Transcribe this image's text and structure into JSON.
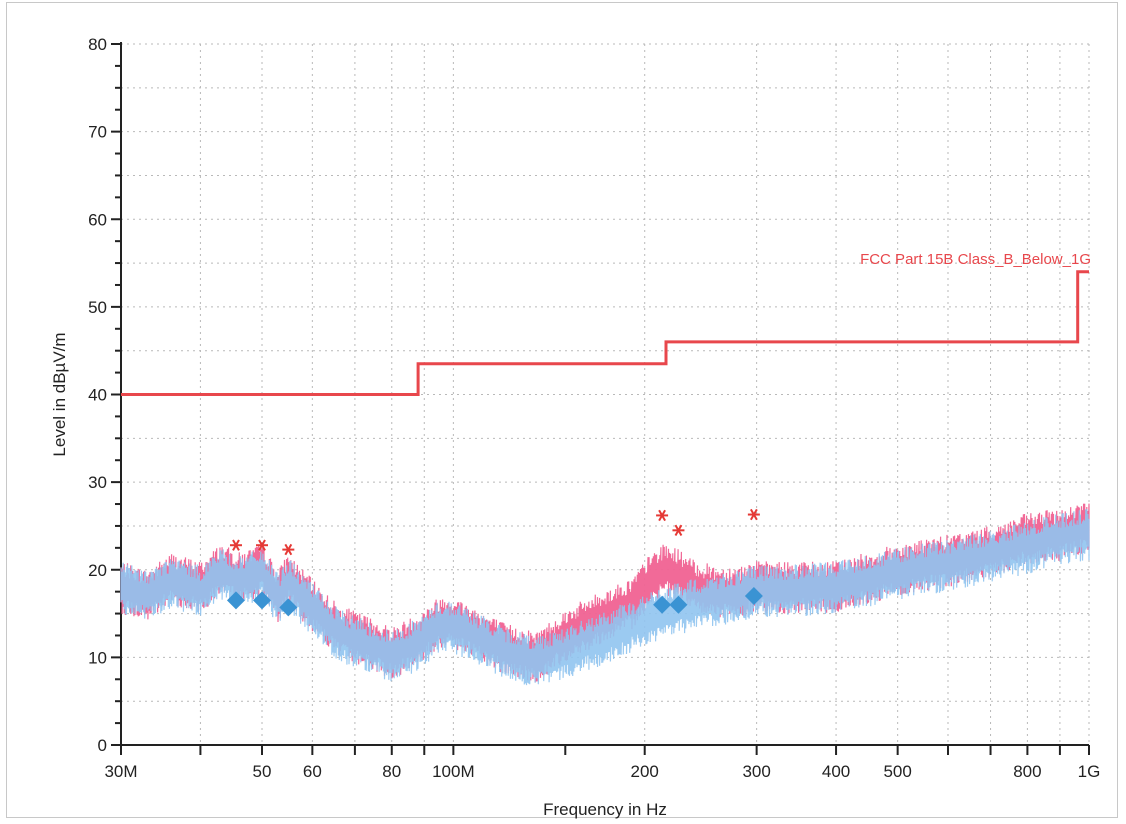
{
  "chart_data": {
    "type": "line",
    "xlabel": "Frequency in Hz",
    "ylabel": "Level in dBµV/m",
    "x_scale": "log",
    "xlim": [
      30000000,
      1000000000
    ],
    "ylim": [
      0,
      80
    ],
    "grid": true,
    "x_ticks": [
      {
        "value": 30000000,
        "label": "30M"
      },
      {
        "value": 50000000,
        "label": "50"
      },
      {
        "value": 60000000,
        "label": "60"
      },
      {
        "value": 80000000,
        "label": "80"
      },
      {
        "value": 100000000,
        "label": "100M"
      },
      {
        "value": 200000000,
        "label": "200"
      },
      {
        "value": 300000000,
        "label": "300"
      },
      {
        "value": 400000000,
        "label": "400"
      },
      {
        "value": 500000000,
        "label": "500"
      },
      {
        "value": 800000000,
        "label": "800"
      },
      {
        "value": 1000000000,
        "label": "1G"
      }
    ],
    "x_minor_ticks": [
      40000000,
      70000000,
      90000000,
      150000000,
      600000000,
      700000000,
      900000000
    ],
    "y_ticks": [
      0,
      10,
      20,
      30,
      40,
      50,
      60,
      70,
      80
    ],
    "limit_line": {
      "name": "FCC Part 15B Class_B_Below_1G",
      "color": "#e8474c",
      "points": [
        [
          30000000,
          40
        ],
        [
          88000000,
          40
        ],
        [
          88000000,
          43.5
        ],
        [
          216000000,
          43.5
        ],
        [
          216000000,
          46
        ],
        [
          960000000,
          46
        ],
        [
          960000000,
          54
        ],
        [
          1000000000,
          54
        ]
      ]
    },
    "traces": [
      {
        "color": "#f06292",
        "points": [
          [
            30000000,
            18
          ],
          [
            33000000,
            17
          ],
          [
            36000000,
            19
          ],
          [
            40000000,
            18
          ],
          [
            43000000,
            20
          ],
          [
            46000000,
            19
          ],
          [
            50000000,
            20
          ],
          [
            53000000,
            17
          ],
          [
            55000000,
            19
          ],
          [
            58000000,
            17
          ],
          [
            62000000,
            15
          ],
          [
            66000000,
            13
          ],
          [
            72000000,
            12
          ],
          [
            80000000,
            10.5
          ],
          [
            88000000,
            12
          ],
          [
            95000000,
            14
          ],
          [
            100000000,
            14
          ],
          [
            110000000,
            12.5
          ],
          [
            120000000,
            11
          ],
          [
            135000000,
            10
          ],
          [
            150000000,
            12.5
          ],
          [
            170000000,
            14.5
          ],
          [
            190000000,
            16
          ],
          [
            205000000,
            19
          ],
          [
            215000000,
            20
          ],
          [
            225000000,
            19.5
          ],
          [
            240000000,
            18
          ],
          [
            260000000,
            17.5
          ],
          [
            280000000,
            17.5
          ],
          [
            300000000,
            18
          ],
          [
            330000000,
            18
          ],
          [
            400000000,
            18
          ],
          [
            500000000,
            20
          ],
          [
            600000000,
            21
          ],
          [
            700000000,
            22
          ],
          [
            800000000,
            23.5
          ],
          [
            900000000,
            24
          ],
          [
            1000000000,
            25
          ]
        ]
      },
      {
        "color": "#90c4ef",
        "points": [
          [
            30000000,
            18
          ],
          [
            33000000,
            17
          ],
          [
            36000000,
            18.5
          ],
          [
            40000000,
            17.5
          ],
          [
            43000000,
            19.5
          ],
          [
            46000000,
            18.5
          ],
          [
            50000000,
            19.5
          ],
          [
            53000000,
            16.5
          ],
          [
            55000000,
            18.5
          ],
          [
            58000000,
            16.5
          ],
          [
            62000000,
            14.5
          ],
          [
            66000000,
            12.5
          ],
          [
            72000000,
            11.5
          ],
          [
            80000000,
            10
          ],
          [
            88000000,
            11.5
          ],
          [
            95000000,
            13.5
          ],
          [
            100000000,
            13.5
          ],
          [
            110000000,
            12
          ],
          [
            120000000,
            10.5
          ],
          [
            135000000,
            9.5
          ],
          [
            150000000,
            10.5
          ],
          [
            170000000,
            12
          ],
          [
            190000000,
            13.5
          ],
          [
            205000000,
            14.5
          ],
          [
            215000000,
            15
          ],
          [
            225000000,
            15.5
          ],
          [
            240000000,
            16
          ],
          [
            260000000,
            16.5
          ],
          [
            280000000,
            17
          ],
          [
            300000000,
            17.5
          ],
          [
            330000000,
            17.5
          ],
          [
            400000000,
            18
          ],
          [
            500000000,
            19.5
          ],
          [
            600000000,
            20.5
          ],
          [
            700000000,
            21.5
          ],
          [
            800000000,
            22.5
          ],
          [
            900000000,
            23.5
          ],
          [
            1000000000,
            24
          ]
        ]
      }
    ],
    "peak_markers": {
      "color": "#e53935",
      "points": [
        [
          45500000,
          22.8
        ],
        [
          50000000,
          22.8
        ],
        [
          55000000,
          22.3
        ],
        [
          213000000,
          26.2
        ],
        [
          226000000,
          24.5
        ],
        [
          297000000,
          26.3
        ]
      ]
    },
    "qp_markers": {
      "color": "#3a93d3",
      "points": [
        [
          45500000,
          16.5
        ],
        [
          50000000,
          16.5
        ],
        [
          55000000,
          15.7
        ],
        [
          213000000,
          16
        ],
        [
          226000000,
          16
        ],
        [
          297000000,
          17
        ]
      ]
    }
  }
}
